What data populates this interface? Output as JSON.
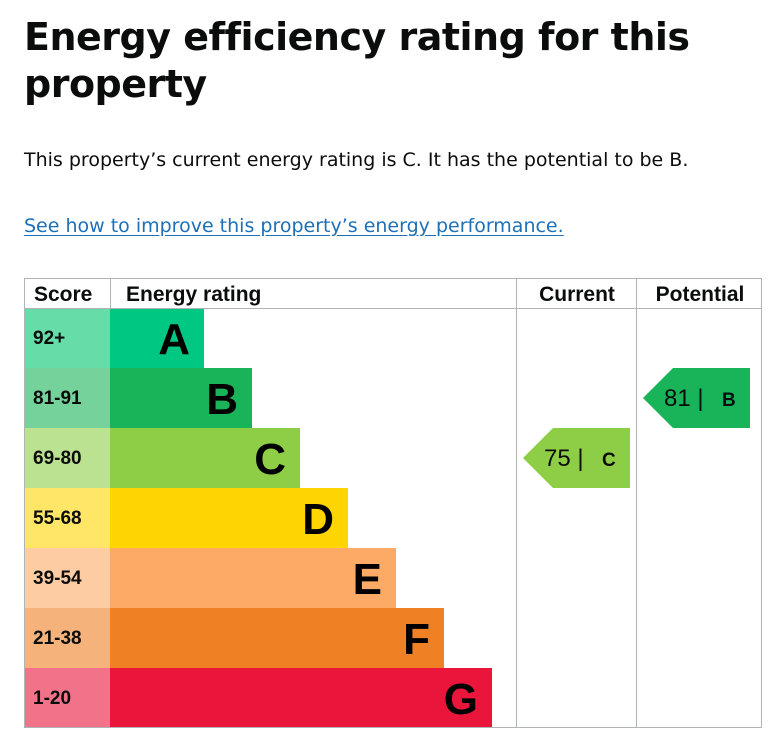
{
  "heading": "Energy efficiency rating for this property",
  "summary": "This property’s current energy rating is C. It has the potential to be B.",
  "improve_link": "See how to improve this property’s energy performance.",
  "chart_data": {
    "type": "table",
    "columns": [
      "Score",
      "Energy rating",
      "Current",
      "Potential"
    ],
    "bands": [
      {
        "score": "92+",
        "letter": "A",
        "color": "#00c781",
        "score_bg": "#66dda9"
      },
      {
        "score": "81-91",
        "letter": "B",
        "color": "#19b459",
        "score_bg": "#75d29b"
      },
      {
        "score": "69-80",
        "letter": "C",
        "color": "#8dce46",
        "score_bg": "#bbe290"
      },
      {
        "score": "55-68",
        "letter": "D",
        "color": "#ffd500",
        "score_bg": "#ffe666"
      },
      {
        "score": "39-54",
        "letter": "E",
        "color": "#fcaa65",
        "score_bg": "#fdcca3"
      },
      {
        "score": "21-38",
        "letter": "F",
        "color": "#ef8023",
        "score_bg": "#f5b37b"
      },
      {
        "score": "1-20",
        "letter": "G",
        "color": "#e9153b",
        "score_bg": "#f27389"
      }
    ],
    "current": {
      "value": 75,
      "letter": "C"
    },
    "potential": {
      "value": 81,
      "letter": "B"
    }
  }
}
